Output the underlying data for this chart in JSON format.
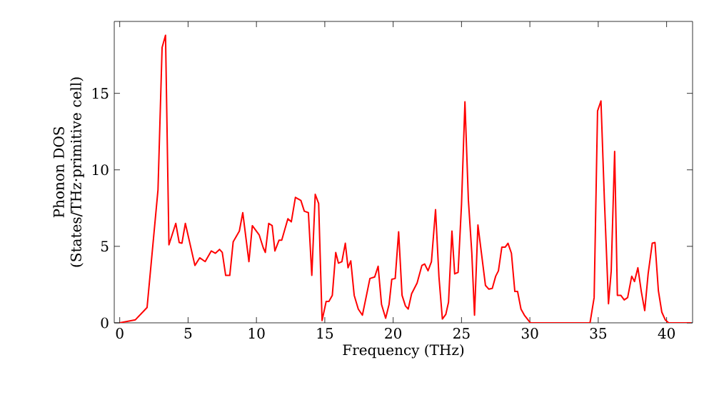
{
  "chart_data": {
    "type": "line",
    "xlabel": "Frequency (THz)",
    "ylabel": "Phonon DOS (States/THz·primitive cell)",
    "xlim": [
      -0.4,
      41.9
    ],
    "ylim": [
      0,
      19.7
    ],
    "xticks": [
      0,
      5,
      10,
      15,
      20,
      25,
      30,
      35,
      40
    ],
    "yticks": [
      0,
      5,
      10,
      15
    ],
    "grid": false,
    "marker": "none",
    "line_style": "solid",
    "series": [
      {
        "color": "#ff0000",
        "x": [
          0,
          1.15,
          2.0,
          2.8,
          3.1,
          3.35,
          3.6,
          4.1,
          4.35,
          4.55,
          4.8,
          5.5,
          5.85,
          6.25,
          6.7,
          7.0,
          7.3,
          7.5,
          7.75,
          8.05,
          8.3,
          8.75,
          9.0,
          9.45,
          9.7,
          10.2,
          10.5,
          10.65,
          10.9,
          11.15,
          11.35,
          11.65,
          11.85,
          12.3,
          12.55,
          12.85,
          13.25,
          13.5,
          13.8,
          14.05,
          14.3,
          14.55,
          14.8,
          15.1,
          15.3,
          15.55,
          15.8,
          16.0,
          16.25,
          16.5,
          16.7,
          16.9,
          17.15,
          17.45,
          17.75,
          18.05,
          18.3,
          18.65,
          18.9,
          19.15,
          19.45,
          19.7,
          19.9,
          20.15,
          20.4,
          20.65,
          20.9,
          21.1,
          21.35,
          21.75,
          22.1,
          22.3,
          22.55,
          22.8,
          23.1,
          23.35,
          23.6,
          23.85,
          24.05,
          24.3,
          24.5,
          24.75,
          25.0,
          25.25,
          25.5,
          25.75,
          25.95,
          26.2,
          26.45,
          26.75,
          27.0,
          27.25,
          27.5,
          27.7,
          27.95,
          28.2,
          28.4,
          28.65,
          28.9,
          29.1,
          29.35,
          29.6,
          29.95,
          30.05,
          34.4,
          34.7,
          34.95,
          35.2,
          35.45,
          35.75,
          35.95,
          36.2,
          36.4,
          36.65,
          36.9,
          37.15,
          37.45,
          37.65,
          37.9,
          38.15,
          38.4,
          38.65,
          38.95,
          39.15,
          39.4,
          39.65,
          39.9,
          40.15,
          41.8
        ],
        "values": [
          0,
          0.2,
          1.0,
          8.7,
          18.0,
          18.8,
          5.1,
          6.5,
          5.25,
          5.2,
          6.5,
          3.75,
          4.25,
          4.0,
          4.7,
          4.55,
          4.8,
          4.6,
          3.1,
          3.1,
          5.3,
          6.0,
          7.2,
          4.0,
          6.35,
          5.75,
          4.9,
          4.6,
          6.5,
          6.35,
          4.7,
          5.4,
          5.4,
          6.8,
          6.6,
          8.2,
          8.0,
          7.3,
          7.2,
          3.1,
          8.4,
          7.8,
          0.15,
          1.4,
          1.4,
          1.8,
          4.6,
          3.9,
          4.0,
          5.2,
          3.6,
          4.05,
          1.8,
          0.9,
          0.5,
          1.8,
          2.9,
          3.0,
          3.7,
          1.2,
          0.3,
          1.2,
          2.85,
          2.9,
          5.95,
          1.8,
          1.1,
          0.9,
          1.9,
          2.6,
          3.75,
          3.85,
          3.4,
          4.0,
          7.4,
          3.0,
          0.25,
          0.55,
          1.35,
          6.0,
          3.2,
          3.3,
          7.75,
          14.45,
          8.05,
          4.6,
          0.5,
          6.4,
          4.6,
          2.45,
          2.2,
          2.25,
          3.05,
          3.4,
          4.95,
          4.95,
          5.2,
          4.55,
          2.05,
          2.05,
          0.9,
          0.5,
          0.1,
          0,
          0,
          1.65,
          13.85,
          14.5,
          8.05,
          1.25,
          3.4,
          11.2,
          1.8,
          1.8,
          1.5,
          1.65,
          3.05,
          2.7,
          3.6,
          2.05,
          0.8,
          3.2,
          5.2,
          5.25,
          2.1,
          0.7,
          0.2,
          0,
          0
        ]
      }
    ]
  }
}
